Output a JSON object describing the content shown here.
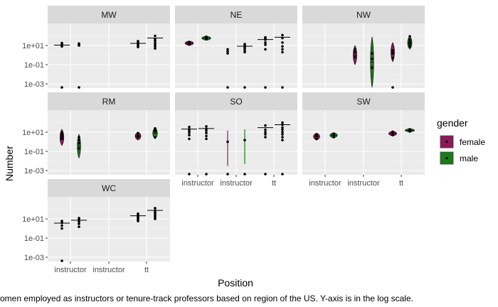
{
  "caption": "omen employed as instructors or tenure-track professors based on region of the US. Y-axis is in the log scale.",
  "chart_data": {
    "type": "violin",
    "xlabel": "Position",
    "ylabel": "Number",
    "y_scale": "log10",
    "y_ticks": [
      {
        "value": 10,
        "label": "1e+01"
      },
      {
        "value": 0.1,
        "label": "1e-01"
      },
      {
        "value": 0.001,
        "label": "1e-03"
      }
    ],
    "x_categories": [
      "instructor",
      "instructor",
      "tt"
    ],
    "grid": true,
    "legend": {
      "title": "gender",
      "position": "right",
      "entries": [
        {
          "label": "female",
          "color": "#8B1A5A"
        },
        {
          "label": "male",
          "color": "#1B7A1B"
        }
      ]
    },
    "colors": {
      "female": "#8B1A5A",
      "male": "#1B7A1B",
      "panel_bg": "#EBEBEB",
      "strip_bg": "#D9D9D9"
    },
    "facets": [
      {
        "name": "MW",
        "groups": [
          {
            "x": 0,
            "gender": "female",
            "kind": "points",
            "points": [
              8,
              10,
              14,
              18,
              0.0001
            ]
          },
          {
            "x": 0,
            "gender": "male",
            "kind": "points",
            "points": [
              10,
              13,
              16,
              0.0001
            ]
          },
          {
            "x": 2,
            "gender": "female",
            "kind": "points",
            "points": [
              7,
              10,
              14,
              20,
              28
            ]
          },
          {
            "x": 2,
            "gender": "male",
            "kind": "points",
            "points": [
              5,
              8,
              12,
              18,
              30,
              45,
              100
            ]
          }
        ]
      },
      {
        "name": "NE",
        "groups": [
          {
            "x": 0,
            "gender": "female",
            "kind": "violin",
            "points": [
              13,
              15,
              18,
              22
            ],
            "range": [
              10,
              30
            ]
          },
          {
            "x": 0,
            "gender": "male",
            "kind": "violin",
            "points": [
              45,
              60,
              70,
              80
            ],
            "range": [
              35,
              95
            ]
          },
          {
            "x": 1,
            "gender": "female",
            "kind": "points",
            "points": [
              1.5,
              2.5,
              4,
              0.0001
            ]
          },
          {
            "x": 1,
            "gender": "male",
            "kind": "points",
            "points": [
              2,
              3,
              5,
              7,
              10,
              14,
              0.0001
            ]
          },
          {
            "x": 2,
            "gender": "female",
            "kind": "points",
            "points": [
              4,
              12,
              20,
              40,
              55,
              65,
              70,
              0.0001
            ]
          },
          {
            "x": 2,
            "gender": "male",
            "kind": "points",
            "points": [
              2,
              4,
              8,
              20,
              60,
              120,
              0.0001
            ]
          }
        ]
      },
      {
        "name": "NW",
        "groups": [
          {
            "x": 1,
            "gender": "female",
            "kind": "violin",
            "points": [
              0.6,
              2,
              4
            ],
            "range": [
              0.1,
              10
            ]
          },
          {
            "x": 1,
            "gender": "male",
            "kind": "violin",
            "points": [
              0.05,
              0.4,
              1.5
            ],
            "range": [
              0.0001,
              80
            ]
          },
          {
            "x": 2,
            "gender": "female",
            "kind": "violin",
            "points": [
              0.5,
              1.5,
              3,
              0.0001
            ],
            "range": [
              0.2,
              20
            ]
          },
          {
            "x": 2,
            "gender": "male",
            "kind": "violin",
            "points": [
              8,
              15,
              22,
              40,
              90
            ],
            "range": [
              4,
              90
            ]
          }
        ]
      },
      {
        "name": "RM",
        "groups": [
          {
            "x": 0,
            "gender": "female",
            "kind": "violin",
            "points": [
              2,
              4,
              6,
              9
            ],
            "range": [
              0.4,
              20
            ]
          },
          {
            "x": 0,
            "gender": "male",
            "kind": "violin",
            "points": [
              0.2,
              0.7,
              1.5,
              3
            ],
            "range": [
              0.02,
              6
            ]
          },
          {
            "x": 2,
            "gender": "female",
            "kind": "violin",
            "points": [
              3,
              5,
              8
            ],
            "range": [
              1.5,
              10
            ]
          },
          {
            "x": 2,
            "gender": "male",
            "kind": "violin",
            "points": [
              3,
              12,
              16,
              20,
              25
            ],
            "range": [
              2,
              30
            ]
          }
        ]
      },
      {
        "name": "SO",
        "groups": [
          {
            "x": 0,
            "gender": "female",
            "kind": "points",
            "points": [
              2,
              5,
              9,
              14,
              20,
              35,
              0.0001
            ]
          },
          {
            "x": 0,
            "gender": "male",
            "kind": "points",
            "points": [
              2,
              4,
              8,
              14,
              22,
              40,
              0.0001
            ]
          },
          {
            "x": 1,
            "gender": "female",
            "kind": "line",
            "points": [
              1,
              0.0001
            ],
            "range": [
              0.003,
              15
            ]
          },
          {
            "x": 1,
            "gender": "male",
            "kind": "line",
            "points": [
              1.5,
              0.0001
            ],
            "range": [
              0.005,
              20
            ]
          },
          {
            "x": 2,
            "gender": "female",
            "kind": "points",
            "points": [
              3,
              6,
              10,
              18,
              50,
              0.0001
            ]
          },
          {
            "x": 2,
            "gender": "male",
            "kind": "points",
            "points": [
              1.5,
              3,
              6,
              10,
              18,
              30,
              60,
              100,
              0.0001
            ]
          }
        ]
      },
      {
        "name": "SW",
        "groups": [
          {
            "x": 0,
            "gender": "female",
            "kind": "violin",
            "points": [
              2,
              4,
              6
            ],
            "range": [
              1.5,
              8
            ]
          },
          {
            "x": 0,
            "gender": "male",
            "kind": "violin",
            "points": [
              3,
              5,
              7
            ],
            "range": [
              2.5,
              9
            ]
          },
          {
            "x": 2,
            "gender": "female",
            "kind": "violin",
            "points": [
              5,
              8,
              11
            ],
            "range": [
              4,
              13
            ]
          },
          {
            "x": 2,
            "gender": "male",
            "kind": "violin",
            "points": [
              12,
              16,
              20
            ],
            "range": [
              10,
              24
            ]
          }
        ]
      },
      {
        "name": "WC",
        "groups": [
          {
            "x": 0,
            "gender": "female",
            "kind": "points",
            "points": [
              1,
              2,
              4,
              6,
              0.0001
            ]
          },
          {
            "x": 0,
            "gender": "male",
            "kind": "points",
            "points": [
              1.5,
              3,
              5,
              8,
              12
            ]
          },
          {
            "x": 2,
            "gender": "female",
            "kind": "points",
            "points": [
              6,
              9,
              12,
              16,
              20,
              28,
              35
            ]
          },
          {
            "x": 2,
            "gender": "male",
            "kind": "points",
            "points": [
              10,
              15,
              20,
              30,
              45,
              70,
              130
            ]
          }
        ]
      }
    ]
  }
}
